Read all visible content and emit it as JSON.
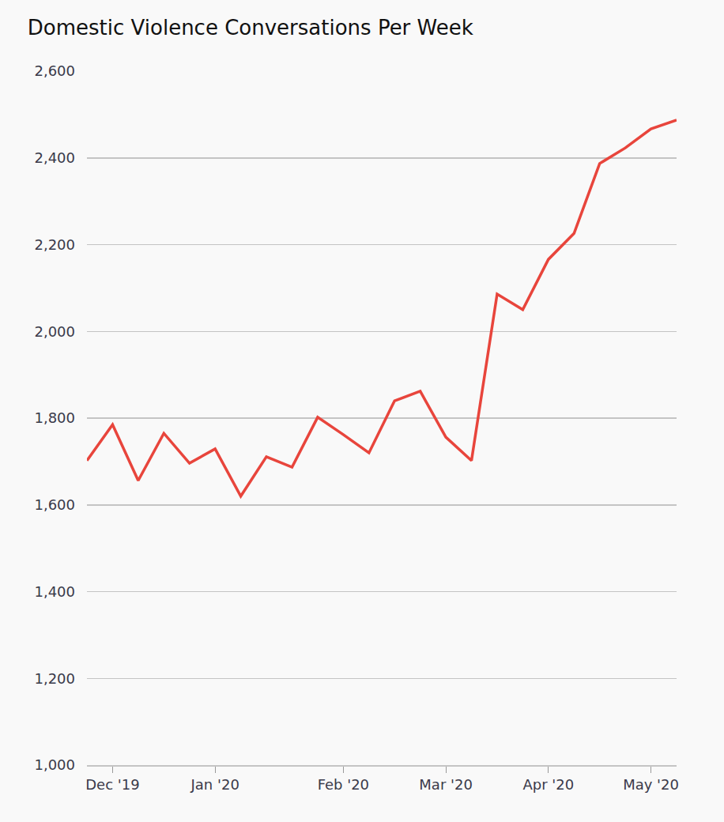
{
  "chart_data": {
    "type": "line",
    "title": "Domestic Violence Conversations Per Week",
    "categories": [
      null,
      "Dec '19",
      null,
      null,
      null,
      "Jan '20",
      null,
      null,
      null,
      null,
      "Feb '20",
      null,
      null,
      null,
      "Mar '20",
      null,
      null,
      null,
      "Apr '20",
      null,
      null,
      null,
      "May '20",
      null
    ],
    "values": [
      1702,
      1785,
      1656,
      1765,
      1696,
      1729,
      1620,
      1711,
      1687,
      1802,
      1762,
      1720,
      1840,
      1862,
      1756,
      1702,
      2086,
      2050,
      2166,
      2226,
      2387,
      2423,
      2467,
      2487
    ],
    "color": "#e8453c",
    "line_style": "solid",
    "ylim": [
      1000,
      2600
    ],
    "yticks": [
      {
        "value": 1000,
        "label": "1,000"
      },
      {
        "value": 1200,
        "label": "1,200"
      },
      {
        "value": 1400,
        "label": "1,400"
      },
      {
        "value": 1600,
        "label": "1,600"
      },
      {
        "value": 1800,
        "label": "1,800"
      },
      {
        "value": 2000,
        "label": "2,000"
      },
      {
        "value": 2200,
        "label": "2,200"
      },
      {
        "value": 2400,
        "label": "2,400"
      },
      {
        "value": 2600,
        "label": "2,600"
      }
    ],
    "grid": true
  }
}
